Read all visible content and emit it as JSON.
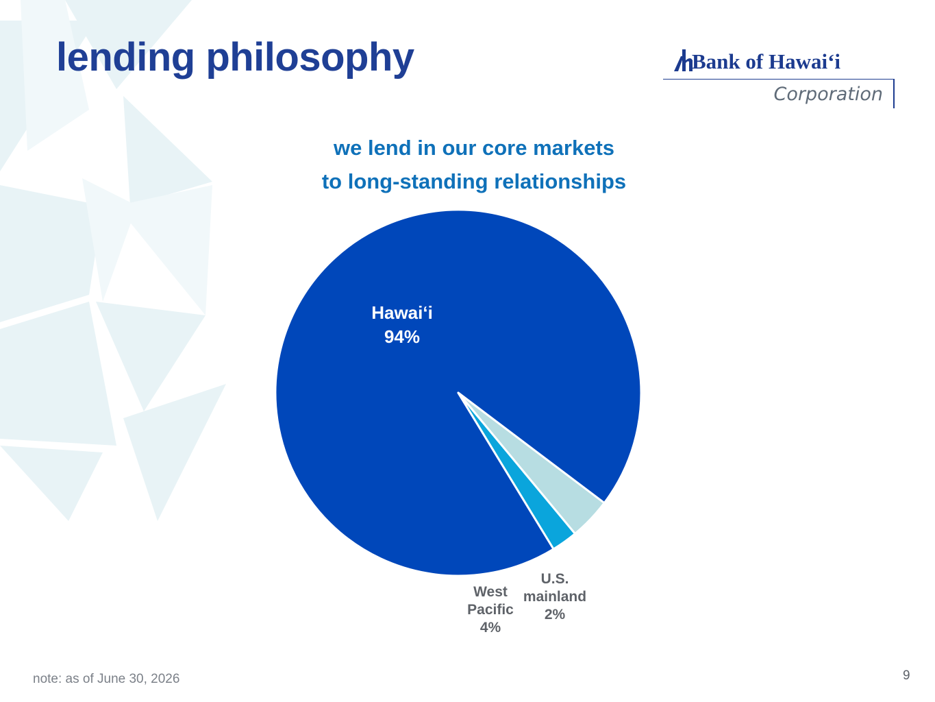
{
  "page": {
    "title": "lending philosophy",
    "subtitle_line1": "we lend in our core markets",
    "subtitle_line2": "to long-standing relationships",
    "note": "note: as of June 30, 2026",
    "page_number": "9"
  },
  "logo": {
    "name": "Bank of Hawaiʻi",
    "sub": "Corporation",
    "mark_icon": "bank-of-hawaii-h-mark-icon"
  },
  "colors": {
    "title": "#1f3f95",
    "subtitle": "#0f71b9",
    "hawaii": "#0047ba",
    "us_mainland": "#0aa5dc",
    "west_pacific": "#b7dde2",
    "pattern": "#e8f3f6"
  },
  "chart_data": {
    "type": "pie",
    "title": "",
    "slices": [
      {
        "name": "Hawaiʻi",
        "value": 94,
        "label_value": "94%",
        "color": "#0047ba"
      },
      {
        "name": "U.S. mainland",
        "name_line1": "U.S.",
        "name_line2": "mainland",
        "value": 2.3,
        "label_value": "2%",
        "color": "#0aa5dc"
      },
      {
        "name": "West Pacific",
        "name_line1": "West",
        "name_line2": "Pacific",
        "value": 3.7,
        "label_value": "4%",
        "color": "#b7dde2"
      }
    ]
  }
}
